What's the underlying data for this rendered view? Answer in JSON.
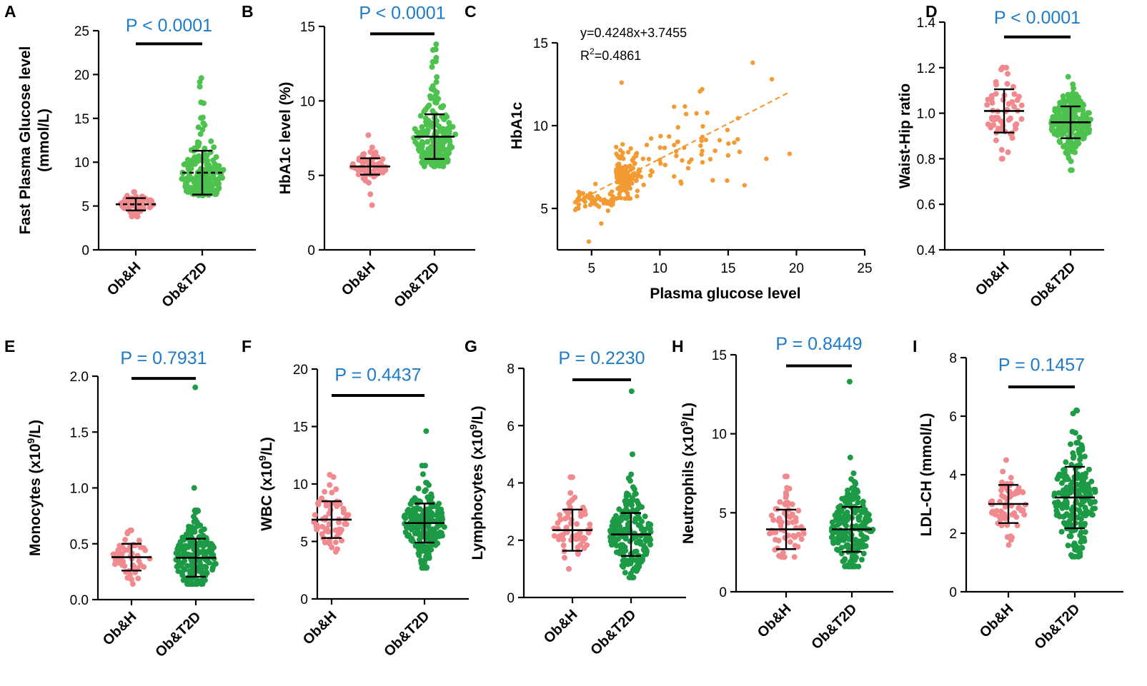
{
  "colors": {
    "obh": "#f08a8e",
    "t2d_light": "#4ec24e",
    "t2d_dark": "#1c9a45",
    "scatter": "#f39b33",
    "pvalue": "#1e7bc8"
  },
  "chart_data": [
    {
      "panel": "A",
      "type": "scatter",
      "chart": "dot-plot",
      "ylabel": [
        "Fast Plasma Glucose level",
        "(mmol/L)"
      ],
      "ylim": [
        0,
        25
      ],
      "yticks": [
        0,
        5,
        10,
        15,
        20,
        25
      ],
      "categories": [
        "Ob&H",
        "Ob&T2D"
      ],
      "pvalue": "P < 0.0001",
      "bar_y": 23.5,
      "pvalue_y": 25.1,
      "series": [
        {
          "name": "Ob&H",
          "color": "obh",
          "n": 60,
          "mean": 5.2,
          "sd": 0.7,
          "min": 3.8,
          "max": 6.6,
          "center_style": "dashed"
        },
        {
          "name": "Ob&T2D",
          "color": "t2d_light",
          "n": 200,
          "mean": 8.8,
          "sd": 2.5,
          "min": 6.2,
          "max": 19.6,
          "center_style": "dashed",
          "skew": true
        }
      ]
    },
    {
      "panel": "B",
      "type": "scatter",
      "chart": "dot-plot",
      "ylabel": [
        "HbA1c level (%)"
      ],
      "ylim": [
        0,
        15
      ],
      "yticks": [
        0,
        5,
        10,
        15
      ],
      "categories": [
        "Ob&H",
        "Ob&T2D"
      ],
      "pvalue": "P < 0.0001",
      "bar_y": 14.5,
      "pvalue_y": 15.6,
      "series": [
        {
          "name": "Ob&H",
          "color": "obh",
          "n": 60,
          "mean": 5.6,
          "sd": 0.55,
          "min": 3.0,
          "max": 7.7
        },
        {
          "name": "Ob&T2D",
          "color": "t2d_light",
          "n": 200,
          "mean": 7.6,
          "sd": 1.5,
          "min": 5.6,
          "max": 13.8,
          "skew": true
        }
      ]
    },
    {
      "panel": "C",
      "type": "scatter",
      "chart": "regression",
      "xlabel": "Plasma glucose level",
      "ylabel": [
        "HbA1c"
      ],
      "xlim": [
        2.5,
        25
      ],
      "xticks": [
        5,
        10,
        15,
        20,
        25
      ],
      "ylim": [
        2.5,
        15
      ],
      "yticks": [
        5,
        10,
        15
      ],
      "equation": "y=0.4248x+3.7455",
      "r2_label": "R",
      "r2_sup": "2",
      "r2_value": "=0.4861",
      "slope": 0.4248,
      "intercept": 3.7455,
      "fit_range": [
        4.5,
        19.5
      ],
      "n": 260,
      "outliers": [
        [
          16.8,
          13.8
        ],
        [
          18.2,
          12.8
        ],
        [
          7.2,
          12.6
        ],
        [
          19.5,
          8.3
        ],
        [
          17.8,
          8.0
        ],
        [
          4.8,
          3.0
        ],
        [
          15.0,
          8.2
        ],
        [
          16.2,
          6.4
        ]
      ]
    },
    {
      "panel": "D",
      "type": "scatter",
      "chart": "dot-plot",
      "ylabel": [
        "Waist-Hip ratio"
      ],
      "ylim": [
        0.4,
        1.4
      ],
      "yticks": [
        0.4,
        0.6,
        0.8,
        1.0,
        1.2,
        1.4
      ],
      "categories": [
        "Ob&H",
        "Ob&T2D"
      ],
      "pvalue": "P < 0.0001",
      "bar_y": 1.335,
      "pvalue_y": 1.4,
      "series": [
        {
          "name": "Ob&H",
          "color": "obh",
          "n": 60,
          "mean": 1.01,
          "sd": 0.095,
          "min": 0.8,
          "max": 1.2
        },
        {
          "name": "Ob&T2D",
          "color": "t2d_light",
          "n": 200,
          "mean": 0.96,
          "sd": 0.07,
          "min": 0.75,
          "max": 1.16
        }
      ]
    },
    {
      "panel": "E",
      "type": "scatter",
      "chart": "dot-plot",
      "ylabel": [
        "Monocytes (x10",
        "9",
        "/L)"
      ],
      "ylim": [
        0,
        2.0
      ],
      "yticks": [
        0.0,
        0.5,
        1.0,
        1.5,
        2.0
      ],
      "categories": [
        "Ob&H",
        "Ob&T2D"
      ],
      "pvalue": "P = 0.7931",
      "bar_y": 1.98,
      "pvalue_y": 2.12,
      "series": [
        {
          "name": "Ob&H",
          "color": "obh",
          "n": 60,
          "mean": 0.38,
          "sd": 0.12,
          "min": 0.14,
          "max": 0.62
        },
        {
          "name": "Ob&T2D",
          "color": "t2d_dark",
          "n": 200,
          "mean": 0.375,
          "sd": 0.17,
          "min": 0.14,
          "max": 1.0,
          "extra": [
            1.9,
            0.8
          ]
        }
      ]
    },
    {
      "panel": "F",
      "type": "scatter",
      "chart": "dot-plot",
      "ylabel": [
        "WBC (x10",
        "9",
        "/L)"
      ],
      "ylim": [
        0,
        20
      ],
      "yticks": [
        0,
        5,
        10,
        15,
        20
      ],
      "categories": [
        "Ob&H",
        "Ob&T2D"
      ],
      "pvalue": "P = 0.4437",
      "bar_y": 17.7,
      "pvalue_y": 19.1,
      "series": [
        {
          "name": "Ob&H",
          "color": "obh",
          "n": 60,
          "mean": 6.9,
          "sd": 1.6,
          "min": 4.1,
          "max": 10.8
        },
        {
          "name": "Ob&T2D",
          "color": "t2d_dark",
          "n": 200,
          "mean": 6.6,
          "sd": 1.7,
          "min": 2.7,
          "max": 11.6,
          "extra": [
            14.6
          ]
        }
      ]
    },
    {
      "panel": "G",
      "type": "scatter",
      "chart": "dot-plot",
      "ylabel": [
        "Lymphocytes (x10",
        "9",
        "/L)"
      ],
      "ylim": [
        0,
        8
      ],
      "yticks": [
        0,
        2,
        4,
        6,
        8
      ],
      "categories": [
        "Ob&H",
        "Ob&T2D"
      ],
      "pvalue": "P = 0.2230",
      "bar_y": 7.6,
      "pvalue_y": 8.2,
      "series": [
        {
          "name": "Ob&H",
          "color": "obh",
          "n": 60,
          "mean": 2.35,
          "sd": 0.72,
          "min": 1.0,
          "max": 4.2
        },
        {
          "name": "Ob&T2D",
          "color": "t2d_dark",
          "n": 200,
          "mean": 2.2,
          "sd": 0.75,
          "min": 0.7,
          "max": 4.3,
          "extra": [
            7.2,
            5.0
          ]
        }
      ]
    },
    {
      "panel": "H",
      "type": "scatter",
      "chart": "dot-plot",
      "ylabel": [
        "Neutrophils (x10",
        "9",
        "/L)"
      ],
      "ylim": [
        0,
        15
      ],
      "yticks": [
        0,
        5,
        10,
        15
      ],
      "categories": [
        "Ob&H",
        "Ob&T2D"
      ],
      "pvalue": "P = 0.8449",
      "bar_y": 14.3,
      "pvalue_y": 15.4,
      "series": [
        {
          "name": "Ob&H",
          "color": "obh",
          "n": 60,
          "mean": 3.95,
          "sd": 1.25,
          "min": 2.2,
          "max": 7.3
        },
        {
          "name": "Ob&T2D",
          "color": "t2d_dark",
          "n": 200,
          "mean": 3.95,
          "sd": 1.42,
          "min": 1.6,
          "max": 7.5,
          "extra": [
            13.3,
            8.5
          ]
        }
      ]
    },
    {
      "panel": "I",
      "type": "scatter",
      "chart": "dot-plot",
      "ylabel": [
        "LDL-CH (mmol/L)"
      ],
      "ylim": [
        0,
        8
      ],
      "yticks": [
        0,
        2,
        4,
        6,
        8
      ],
      "categories": [
        "Ob&H",
        "Ob&T2D"
      ],
      "pvalue": "P = 0.1457",
      "bar_y": 7.0,
      "pvalue_y": 7.6,
      "series": [
        {
          "name": "Ob&H",
          "color": "obh",
          "n": 60,
          "mean": 3.0,
          "sd": 0.65,
          "min": 1.6,
          "max": 4.5
        },
        {
          "name": "Ob&T2D",
          "color": "t2d_dark",
          "n": 200,
          "mean": 3.22,
          "sd": 1.05,
          "min": 1.2,
          "max": 6.2
        }
      ]
    }
  ]
}
